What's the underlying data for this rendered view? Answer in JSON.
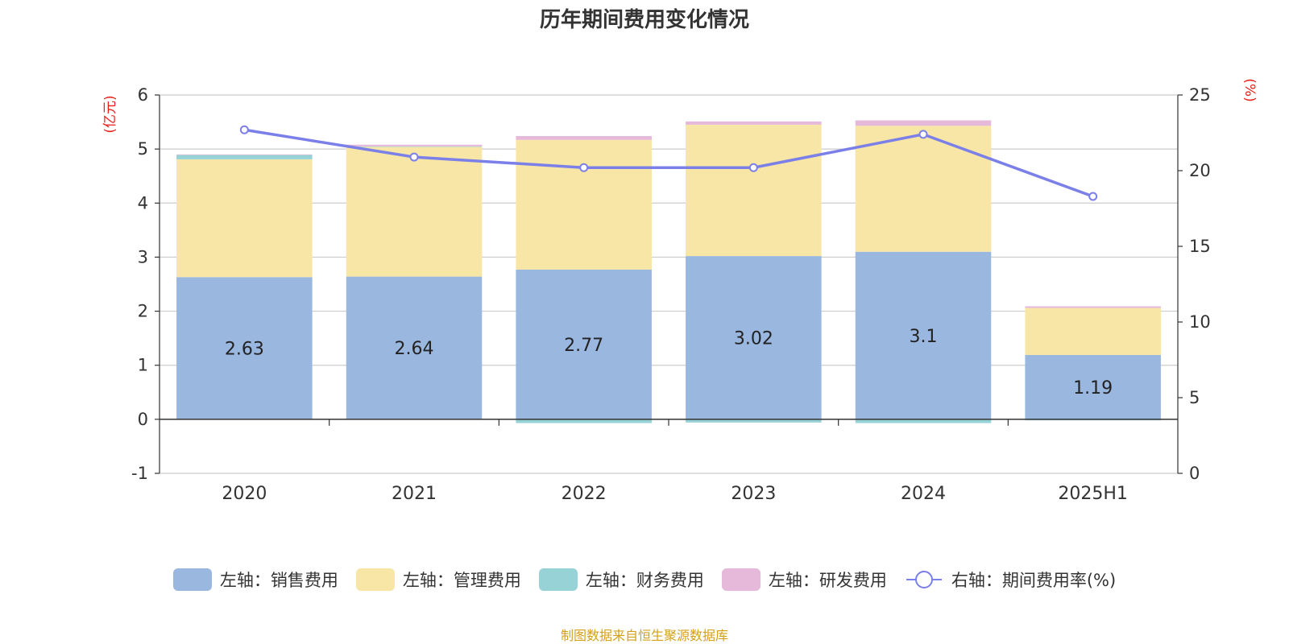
{
  "chart_data": {
    "type": "bar",
    "title": "历年期间费用变化情况",
    "categories": [
      "2020",
      "2021",
      "2022",
      "2023",
      "2024",
      "2025H1"
    ],
    "left_axis": {
      "label": "(亿元)",
      "min": -1,
      "max": 6,
      "ticks": [
        6,
        5,
        4,
        3,
        2,
        1,
        0,
        -1
      ]
    },
    "right_axis": {
      "label": "(%)",
      "min": 0,
      "max": 25,
      "ticks": [
        25,
        20,
        15,
        10,
        5,
        0
      ]
    },
    "series": [
      {
        "name": "左轴：销售费用",
        "type": "bar",
        "axis": "left",
        "color": "#9ab7e0",
        "values": [
          2.63,
          2.64,
          2.77,
          3.02,
          3.1,
          1.19
        ],
        "labels": [
          "2.63",
          "2.64",
          "2.77",
          "3.02",
          "3.1",
          "1.19"
        ]
      },
      {
        "name": "左轴：管理费用",
        "type": "bar",
        "axis": "left",
        "color": "#f7e6a6",
        "values": [
          2.18,
          2.4,
          2.4,
          2.43,
          2.33,
          0.87
        ]
      },
      {
        "name": "左轴：财务费用",
        "type": "bar",
        "axis": "left",
        "color": "#96d2d6",
        "values": [
          0.08,
          0.01,
          -0.07,
          -0.06,
          -0.07,
          -0.02
        ]
      },
      {
        "name": "左轴：研发费用",
        "type": "bar",
        "axis": "left",
        "color": "#e6b8d9",
        "values": [
          0.01,
          0.03,
          0.07,
          0.06,
          0.1,
          0.03
        ]
      },
      {
        "name": "右轴：期间费用率(%)",
        "type": "line",
        "axis": "right",
        "color": "#7b7fe8",
        "values": [
          22.7,
          20.9,
          20.2,
          20.2,
          22.4,
          18.3
        ]
      }
    ],
    "legend_position": "bottom",
    "grid": true
  },
  "source": "制图数据来自恒生聚源数据库"
}
